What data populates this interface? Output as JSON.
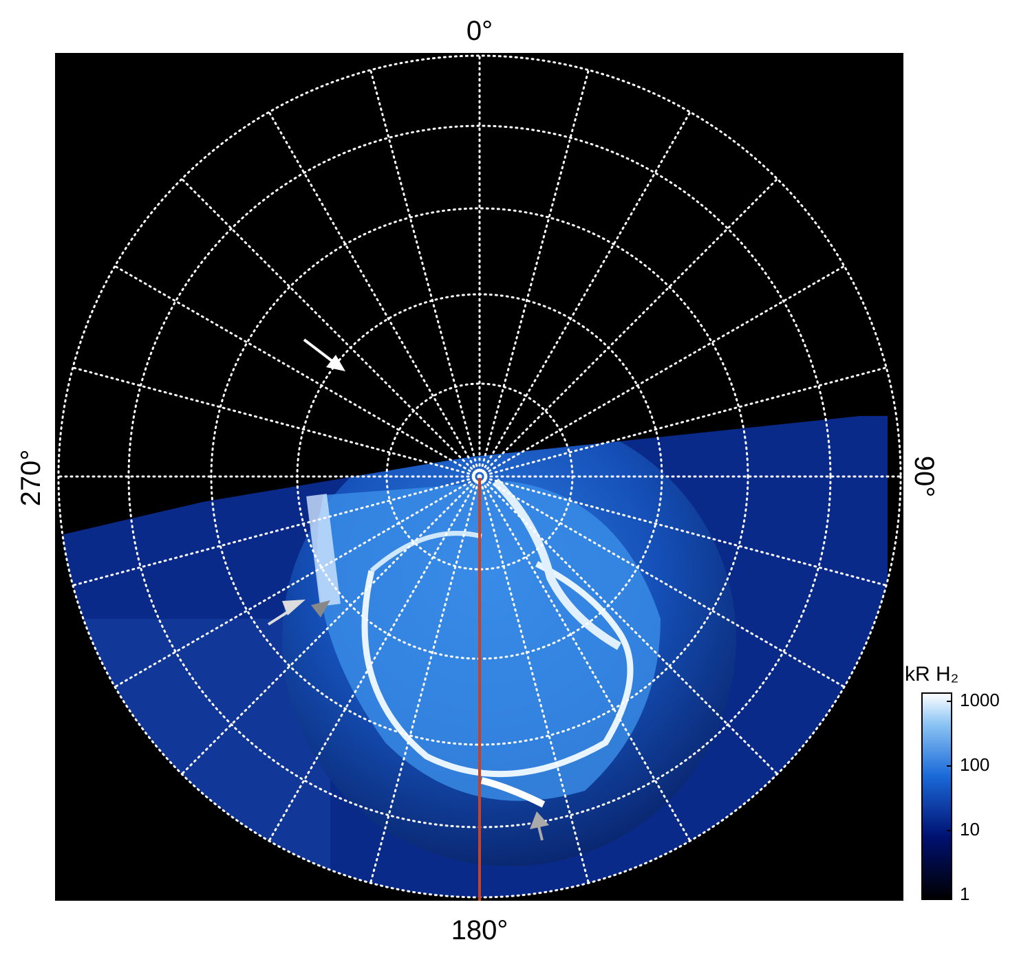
{
  "labels": {
    "top": "0°",
    "right": "90°",
    "bottom": "180°",
    "left": "270°"
  },
  "colorbar": {
    "title": "kR H₂",
    "ticks": [
      1,
      10,
      100,
      1000
    ]
  }
}
